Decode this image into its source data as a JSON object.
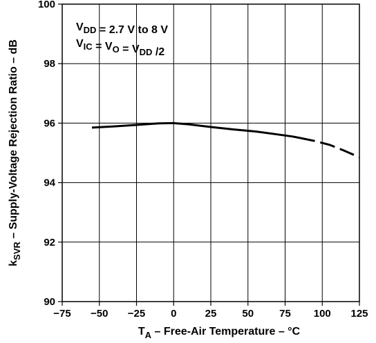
{
  "chart_data": {
    "type": "line",
    "xlabel": {
      "main": "T",
      "sub": "A",
      "rest": " – Free-Air Temperature – °C"
    },
    "ylabel": {
      "pre": "k",
      "sub": "SVR",
      "rest": " – Supply-Voltage Rejection Ratio – dB"
    },
    "xlim": [
      -75,
      125
    ],
    "ylim": [
      90,
      100
    ],
    "xticks": [
      -75,
      -50,
      -25,
      0,
      25,
      50,
      75,
      100,
      125
    ],
    "yticks": [
      90,
      92,
      94,
      96,
      98,
      100
    ],
    "xtick_labels": [
      "−75",
      "−50",
      "−25",
      "0",
      "25",
      "50",
      "75",
      "100",
      "125"
    ],
    "ytick_labels": [
      "90",
      "92",
      "94",
      "96",
      "98",
      "100"
    ],
    "grid": true,
    "annotations": [
      {
        "parts": [
          {
            "t": "V"
          },
          {
            "t": "DD",
            "sub": true
          },
          {
            "t": " = 2.7 V to 8 V"
          }
        ]
      },
      {
        "parts": [
          {
            "t": "V"
          },
          {
            "t": "IC",
            "sub": true
          },
          {
            "t": " = V"
          },
          {
            "t": "O",
            "sub": true
          },
          {
            "t": " = V"
          },
          {
            "t": "DD",
            "sub": true
          },
          {
            "t": " /2"
          }
        ]
      }
    ],
    "series": [
      {
        "solid": [
          [
            -55,
            95.85
          ],
          [
            -40,
            95.89
          ],
          [
            -25,
            95.94
          ],
          [
            -10,
            95.99
          ],
          [
            0,
            96.0
          ],
          [
            10,
            95.96
          ],
          [
            25,
            95.87
          ],
          [
            40,
            95.79
          ],
          [
            55,
            95.72
          ],
          [
            70,
            95.62
          ],
          [
            80,
            95.55
          ],
          [
            85,
            95.5
          ]
        ],
        "dashed": [
          [
            85,
            95.5
          ],
          [
            95,
            95.4
          ],
          [
            105,
            95.27
          ],
          [
            115,
            95.07
          ],
          [
            125,
            94.85
          ]
        ]
      }
    ]
  }
}
